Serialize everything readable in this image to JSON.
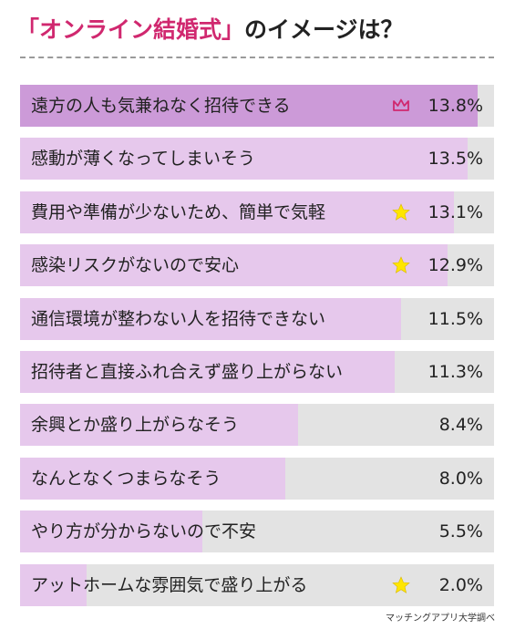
{
  "title": {
    "highlight": "「オンライン結婚式」",
    "rest": "のイメージは？"
  },
  "source": "マッチングアプリ大学調べ",
  "colors": {
    "top": "#cc9ad8",
    "bar": "#e6c8ec",
    "track": "#e3e3e3",
    "accent": "#d0286f",
    "star": "#ffe600"
  },
  "chart_data": {
    "type": "bar",
    "orientation": "horizontal",
    "categories": [
      "遠方の人も気兼ねなく招待できる",
      "感動が薄くなってしまいそう",
      "費用や準備が少ないため、簡単で気軽",
      "感染リスクがないので安心",
      "通信環境が整わない人を招待できない",
      "招待者と直接ふれ合えず盛り上がらない",
      "余興とか盛り上がらなそう",
      "なんとなくつまらなそう",
      "やり方が分からないので不安",
      "アットホームな雰囲気で盛り上がる"
    ],
    "values": [
      13.8,
      13.5,
      13.1,
      12.9,
      11.5,
      11.3,
      8.4,
      8.0,
      5.5,
      2.0
    ],
    "value_labels": [
      "13.8%",
      "13.5%",
      "13.1%",
      "12.9%",
      "11.5%",
      "11.3%",
      "8.4%",
      "8.0%",
      "5.5%",
      "2.0%"
    ],
    "markers": [
      "crown-icon",
      "",
      "star-icon",
      "star-icon",
      "",
      "",
      "",
      "",
      "",
      "star-icon"
    ],
    "xlim": [
      0,
      14.3
    ],
    "grid": false
  }
}
